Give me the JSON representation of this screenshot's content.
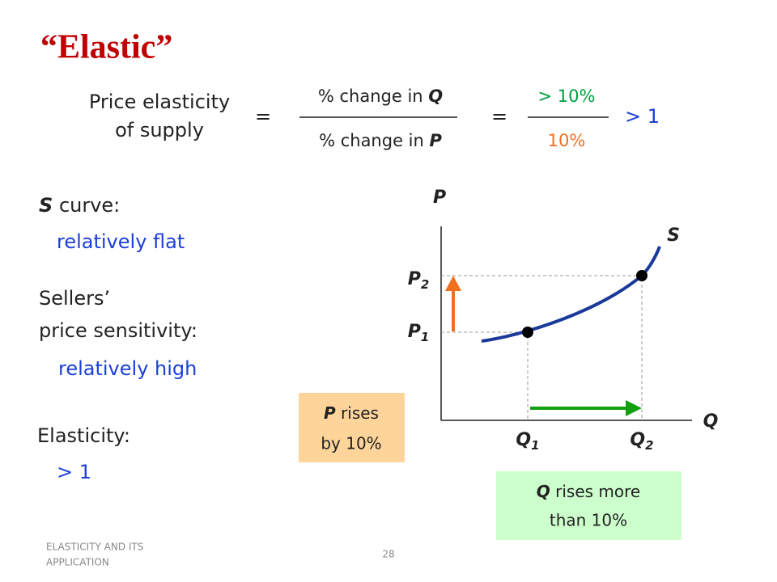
{
  "title": "“Elastic”",
  "formula": {
    "lhs": [
      "Price elasticity",
      "of supply"
    ],
    "equals": "=",
    "numerator": {
      "text": "% change in",
      "var": "Q"
    },
    "denominator": {
      "text": "% change in",
      "var": "P"
    },
    "equals2": "=",
    "num_value": "> 10%",
    "den_value": "10%",
    "result": "> 1"
  },
  "left": {
    "s_curve_label": {
      "var": "S",
      "text": "curve:"
    },
    "s_curve_value": "relatively flat",
    "sensitivity_label": [
      "Sellers’",
      "price sensitivity:"
    ],
    "sensitivity_value": "relatively high",
    "elasticity_label": "Elasticity:",
    "elasticity_value": "> 1"
  },
  "graph": {
    "y_axis": "P",
    "x_axis": "Q",
    "curve": "S",
    "p1": {
      "var": "P",
      "sub": "1"
    },
    "p2": {
      "var": "P",
      "sub": "2"
    },
    "q1": {
      "var": "Q",
      "sub": "1"
    },
    "q2": {
      "var": "Q",
      "sub": "2"
    }
  },
  "boxes": {
    "price": {
      "var": "P",
      "text": "rises",
      "line2": "by 10%"
    },
    "quantity": {
      "var": "Q",
      "text": "rises more",
      "line2": "than 10%"
    }
  },
  "footer": {
    "source": [
      "ELASTICITY AND ITS",
      "APPLICATION"
    ],
    "page": "28"
  }
}
